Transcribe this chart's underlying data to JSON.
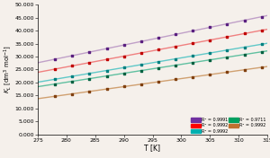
{
  "title": "",
  "xlabel": "T [K]",
  "xlim": [
    275,
    315
  ],
  "ylim": [
    0,
    50000
  ],
  "yticks": [
    0,
    5000,
    10000,
    15000,
    20000,
    25000,
    30000,
    35000,
    40000,
    45000,
    50000
  ],
  "ytick_labels": [
    "0.000",
    "5.000",
    "10.000",
    "15.000",
    "20.000",
    "25.000",
    "30.000",
    "35.000",
    "40.000",
    "45.000",
    "50.000"
  ],
  "xticks": [
    275,
    280,
    285,
    290,
    295,
    300,
    305,
    310,
    315
  ],
  "lines": [
    {
      "color": "#C0A0C8",
      "dot_color": "#5A2080",
      "slope": 455,
      "intercept": -97500,
      "label": "R² = 0.9991"
    },
    {
      "color": "#F08080",
      "dot_color": "#C00000",
      "slope": 415,
      "intercept": -90200,
      "label": "R² = 0.9992"
    },
    {
      "color": "#60C8C8",
      "dot_color": "#008080",
      "slope": 375,
      "intercept": -83000,
      "label": "R² = 0.9992"
    },
    {
      "color": "#60C0A0",
      "dot_color": "#006040",
      "slope": 345,
      "intercept": -76500,
      "label": "R² = 0.9711"
    },
    {
      "color": "#D0A070",
      "dot_color": "#804010",
      "slope": 310,
      "intercept": -71500,
      "label": "R² = 0.9992"
    }
  ],
  "data_x": [
    278,
    281,
    284,
    287,
    290,
    293,
    296,
    299,
    302,
    305,
    308,
    311,
    314
  ],
  "background_color": "#F5F0EB",
  "plot_bg_color": "#F5F0EB",
  "legend_colors": [
    "#7030A0",
    "#FF0000",
    "#00B0B0",
    "#00A060",
    "#C07030"
  ]
}
